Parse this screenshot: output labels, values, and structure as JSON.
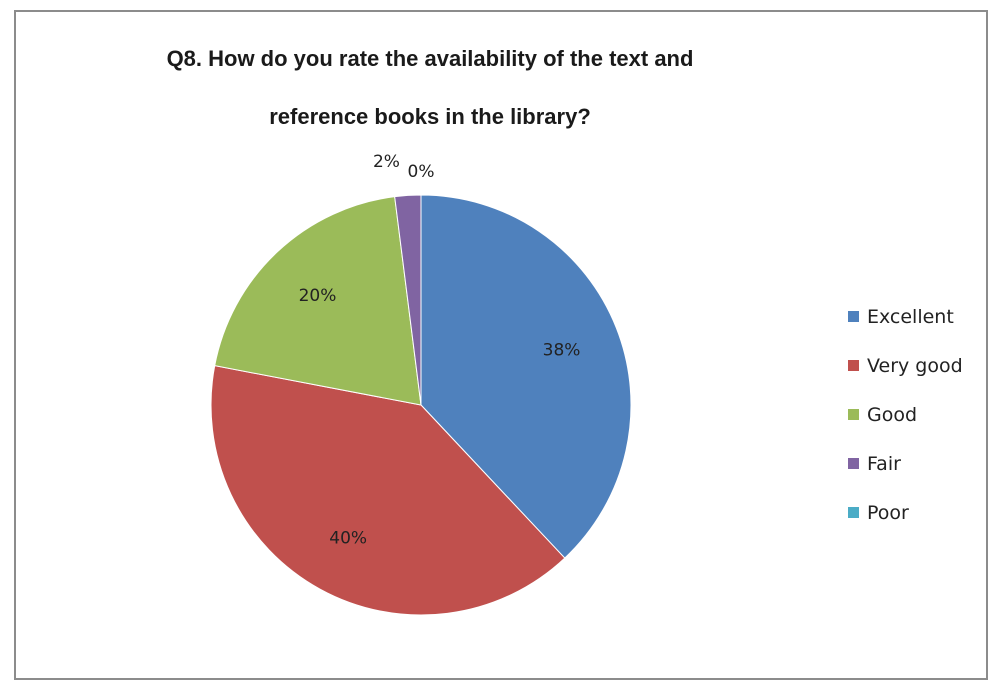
{
  "chart_data": {
    "type": "pie",
    "title": "Q8. How do you rate the availability of the text and reference books in the library?",
    "categories": [
      "Excellent",
      "Very good",
      "Good",
      "Fair",
      "Poor"
    ],
    "values": [
      38,
      40,
      20,
      2,
      0
    ],
    "data_labels": [
      "38%",
      "40%",
      "20%",
      "2%",
      "0%"
    ],
    "colors": [
      "#4F81BD",
      "#C0504D",
      "#9BBB59",
      "#8064A2",
      "#4BACC6"
    ],
    "legend_position": "right"
  }
}
